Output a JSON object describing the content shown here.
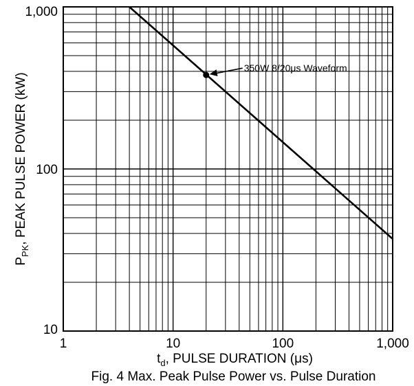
{
  "chart_data": {
    "type": "line",
    "title": "",
    "caption": "Fig. 4  Max. Peak Pulse Power vs. Pulse Duration",
    "xlabel": {
      "main": "t",
      "sub": "d",
      "rest": ", PULSE DURATION (μs)"
    },
    "ylabel": {
      "main": "P",
      "sub": "PK",
      "rest": ", PEAK PULSE POWER (kW)"
    },
    "x_scale": "log",
    "y_scale": "log",
    "xlim": [
      1,
      1000
    ],
    "ylim": [
      10,
      1000
    ],
    "x_ticks": [
      {
        "value": 1,
        "label": "1"
      },
      {
        "value": 10,
        "label": "10"
      },
      {
        "value": 100,
        "label": "100"
      },
      {
        "value": 1000,
        "label": "1,000"
      }
    ],
    "y_ticks": [
      {
        "value": 10,
        "label": "10"
      },
      {
        "value": 100,
        "label": "100"
      },
      {
        "value": 1000,
        "label": "1,000"
      }
    ],
    "grid": true,
    "series": [
      {
        "x": [
          4,
          1000
        ],
        "y": [
          1000,
          37
        ],
        "color": "#000000"
      }
    ],
    "annotation": {
      "text": "350W 8/20μs Waveform",
      "x": 20,
      "y": 380
    }
  }
}
